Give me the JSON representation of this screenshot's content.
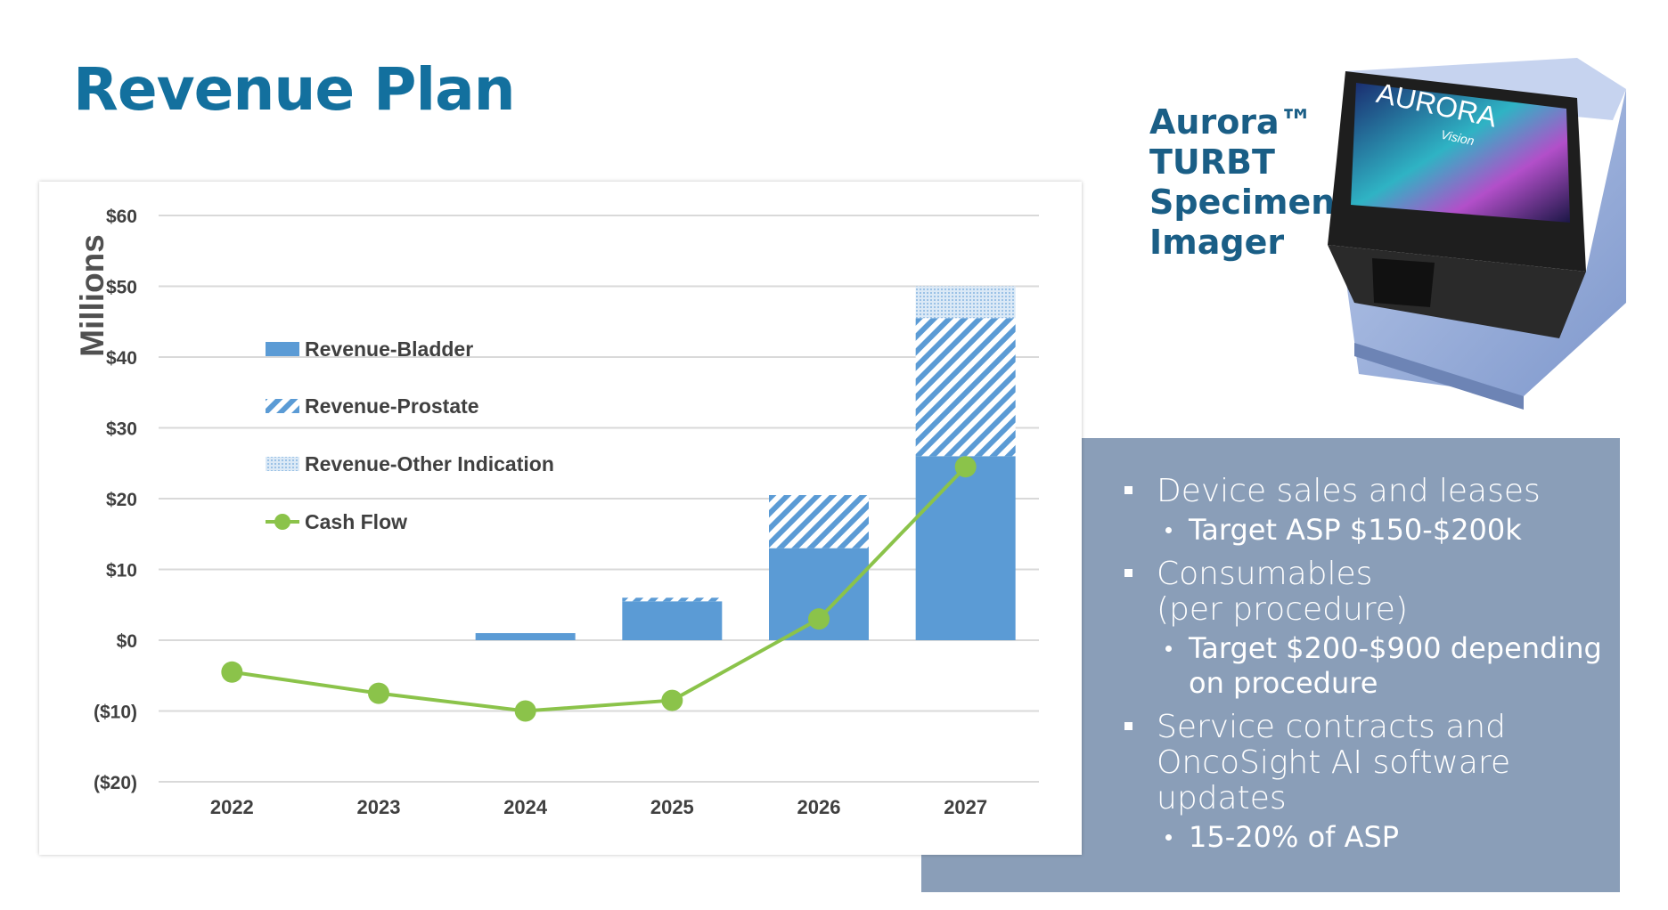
{
  "slide": {
    "title": "Revenue Plan"
  },
  "device": {
    "caption_lines": [
      "Aurora™",
      "TURBT",
      "Specimen",
      "Imager"
    ],
    "screen_brand": "AURORA",
    "screen_subbrand": "Vision"
  },
  "bullets": [
    {
      "text": "Device sales and leases",
      "sub": [
        "Target ASP $150-$200k"
      ]
    },
    {
      "text": "Consumables (per procedure)",
      "sub": [
        "Target $200-$900 depending on procedure"
      ]
    },
    {
      "text": "Service contracts and OncoSight  AI software updates",
      "sub": [
        "15-20% of ASP"
      ]
    }
  ],
  "colors": {
    "title": "#13709e",
    "bladder": "#5b9bd5",
    "cash_flow": "#8bc34a",
    "panel": "#8a9eb8"
  },
  "chart_data": {
    "type": "bar",
    "stacked": true,
    "title": "",
    "ylabel": "Millions",
    "xlabel": "",
    "categories": [
      "2022",
      "2023",
      "2024",
      "2025",
      "2026",
      "2027"
    ],
    "y_tick_labels": [
      "($20)",
      "($10)",
      "$0",
      "$10",
      "$20",
      "$30",
      "$40",
      "$50",
      "$60"
    ],
    "y_tick_values": [
      -20,
      -10,
      0,
      10,
      20,
      30,
      40,
      50,
      60
    ],
    "ylim": [
      -20,
      60
    ],
    "grid": true,
    "legend_position": "upper-left inside plot",
    "series": [
      {
        "name": "Revenue-Bladder",
        "kind": "bar",
        "pattern": "solid",
        "values": [
          0,
          0,
          1,
          5.5,
          13,
          26
        ]
      },
      {
        "name": "Revenue-Prostate",
        "kind": "bar",
        "pattern": "diagonal-hatch",
        "values": [
          0,
          0,
          0,
          0.5,
          7.5,
          19.5
        ]
      },
      {
        "name": "Revenue-Other Indication",
        "kind": "bar",
        "pattern": "dotted",
        "values": [
          0,
          0,
          0,
          0,
          0,
          4.5
        ]
      },
      {
        "name": "Cash Flow",
        "kind": "line",
        "values": [
          -4.5,
          -7.5,
          -10,
          -8.5,
          3,
          24.5
        ]
      }
    ]
  }
}
